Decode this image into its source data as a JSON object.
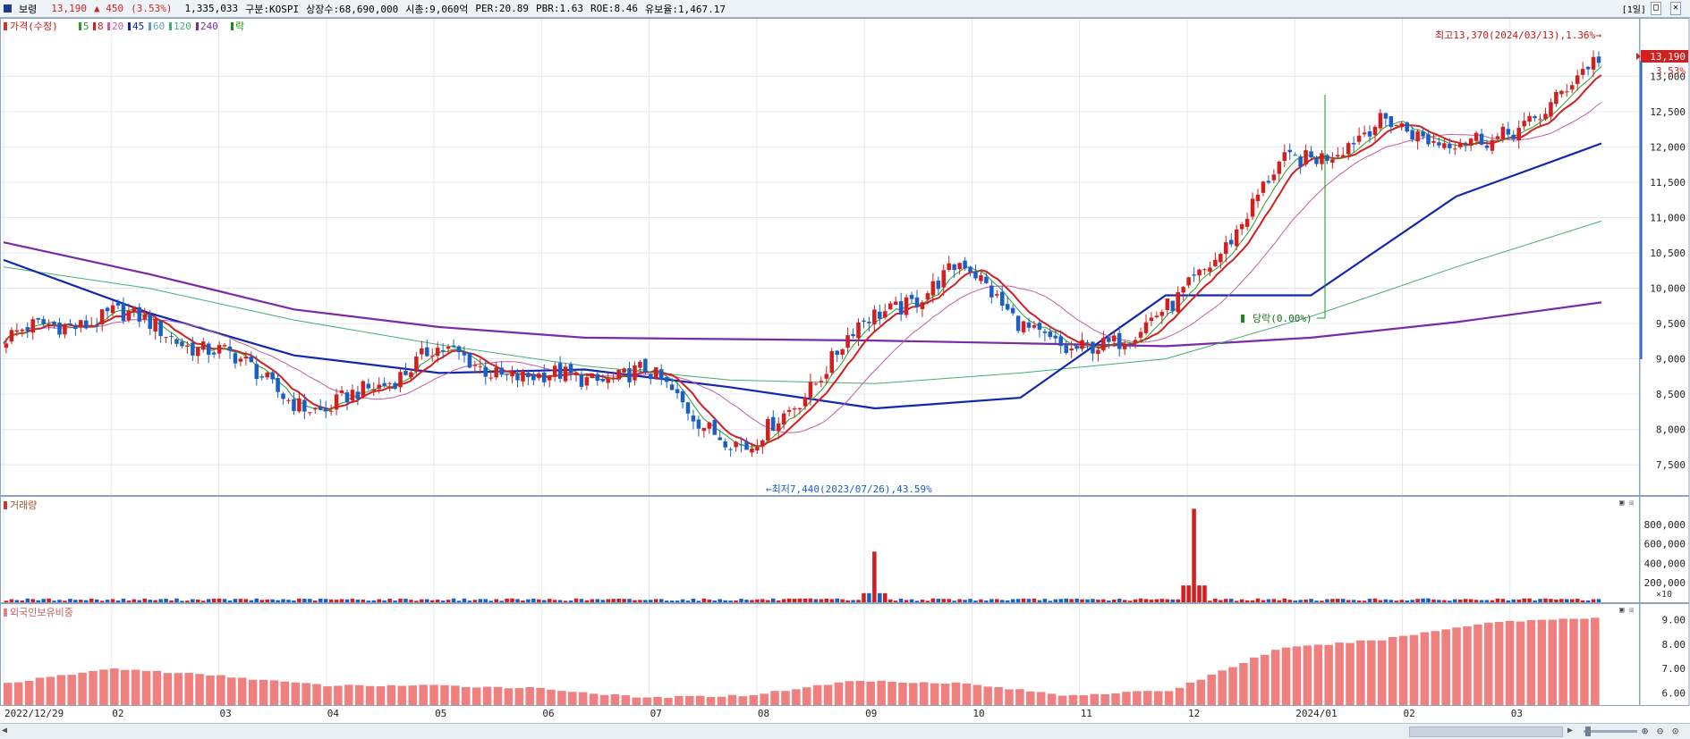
{
  "header": {
    "stock_name": "보령",
    "price": "13,190",
    "change": "▲ 450",
    "change_pct": "(3.53%)",
    "volume": "1,335,033",
    "market": "구분:KOSPI",
    "shares": "상장수:68,690,000",
    "market_cap": "시총:9,060억",
    "per": "PER:20.89",
    "pbr": "PBR:1.63",
    "roe": "ROE:8.46",
    "float": "유보율:1,467.17",
    "period_button": "[1일]",
    "up_color": "#d21f1f",
    "down_color": "#1c5fc4"
  },
  "legend": {
    "price": "가격(수정)",
    "ma5": "5",
    "ma8": "8",
    "ma20": "20",
    "ma45": "45",
    "ma60": "60",
    "ma120": "120",
    "ma240": "240",
    "drop": "락"
  },
  "annotations": {
    "high": "최고13,370(2024/03/13),1.36%→",
    "low": "←최저7,440(2023/07/26),43.59%",
    "dividend": "당락(0.00%)",
    "current_price_box": "13,190",
    "current_pct": "3.53%"
  },
  "panels": {
    "volume_title": "거래량",
    "volume_unit": "×10",
    "foreign_title": "외국인보유비중"
  },
  "chart_data": [
    {
      "type": "candlestick",
      "title": "보령",
      "x_labels": [
        "2022/12/29",
        "02",
        "03",
        "04",
        "05",
        "06",
        "07",
        "08",
        "09",
        "10",
        "11",
        "12",
        "2024/01",
        "02",
        "03"
      ],
      "y_ticks": [
        7500,
        8000,
        8500,
        9000,
        9500,
        10000,
        10500,
        11000,
        11500,
        12000,
        12500,
        13000
      ],
      "ylim": [
        7250,
        13700
      ],
      "monthly_path": [
        {
          "x": "2022/12/29",
          "close": 9300
        },
        {
          "x": "02",
          "close": 9650
        },
        {
          "x": "03",
          "close": 9100
        },
        {
          "x": "04",
          "close": 8200
        },
        {
          "x": "05",
          "close": 9100
        },
        {
          "x": "06",
          "close": 8700
        },
        {
          "x": "07",
          "close": 8800
        },
        {
          "x": "08",
          "close": 7650
        },
        {
          "x": "09",
          "close": 9400
        },
        {
          "x": "10",
          "close": 10300
        },
        {
          "x": "11",
          "close": 9000
        },
        {
          "x": "12",
          "close": 9700
        },
        {
          "x": "2024/01",
          "close": 11700
        },
        {
          "x": "02",
          "close": 12300
        },
        {
          "x": "03",
          "close": 12000
        },
        {
          "x": "last",
          "close": 13190
        }
      ],
      "extremes": {
        "high": 13370,
        "high_date": "2024/03/13",
        "low": 7440,
        "low_date": "2023/07/26"
      },
      "moving_averages": {
        "ma240": [
          10650,
          10200,
          9700,
          9450,
          9300,
          9280,
          9260,
          9220,
          9180,
          9300,
          9520,
          9800
        ],
        "ma120": [
          10300,
          10000,
          9550,
          9200,
          8900,
          8700,
          8650,
          8800,
          9000,
          9600,
          10300,
          10950
        ],
        "ma45": [
          10400,
          9650,
          9050,
          8800,
          8850,
          8600,
          8300,
          8450,
          9900,
          9900,
          11300,
          12050
        ]
      }
    },
    {
      "type": "bar",
      "title": "거래량",
      "y_ticks": [
        200000,
        400000,
        600000,
        800000
      ],
      "unit": "×10",
      "spikes": [
        {
          "x": "09",
          "value": 520000
        },
        {
          "x": "12",
          "value": 960000
        }
      ]
    },
    {
      "type": "bar",
      "title": "외국인보유비중",
      "y_ticks": [
        6.0,
        7.0,
        8.0,
        9.0
      ],
      "ylim": [
        5.5,
        9.5
      ],
      "monthly_values": [
        6.4,
        7.0,
        6.7,
        6.3,
        6.3,
        6.2,
        5.8,
        5.9,
        6.5,
        6.4,
        5.9,
        6.1,
        7.8,
        8.2,
        8.9,
        9.1
      ]
    }
  ]
}
